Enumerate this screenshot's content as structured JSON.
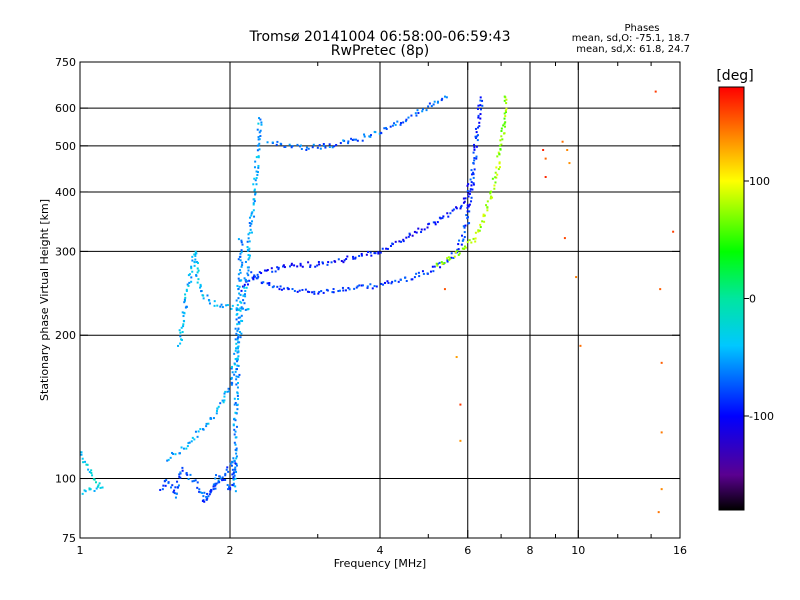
{
  "chart_data": {
    "type": "scatter",
    "title": "Tromsø 20141004 06:58:00-06:59:43",
    "subtitle": "RwPretec (8p)",
    "xlabel": "Frequency [MHz]",
    "ylabel": "Stationary phase Virtual Height [km]",
    "xscale": "log",
    "yscale": "log",
    "xlim": [
      1,
      16
    ],
    "ylim": [
      75,
      750
    ],
    "x_ticks": [
      1,
      2,
      4,
      6,
      8,
      10,
      16
    ],
    "x_tick_labels": [
      "1",
      "2",
      "4",
      "6",
      "8",
      "10",
      "16"
    ],
    "x_minor_ticks": [
      3,
      5,
      7,
      9,
      12,
      14
    ],
    "y_ticks": [
      75,
      100,
      200,
      300,
      400,
      500,
      600,
      750
    ],
    "y_tick_labels": [
      "75",
      "100",
      "200",
      "300",
      "400",
      "500",
      "600",
      "750"
    ],
    "x_gridlines": [
      2,
      4,
      6,
      8,
      10
    ],
    "y_gridlines": [
      100,
      200,
      300,
      400,
      500,
      600
    ],
    "legend": {
      "heading": "Phases",
      "line1": "mean, sd,O: -75.1, 18.7",
      "line2": "mean, sd,X:  61.8, 24.7"
    },
    "colorbar": {
      "title": "[deg]",
      "range": [
        -180,
        180
      ],
      "ticks": [
        100,
        0,
        -100
      ],
      "tick_labels": [
        "100",
        "0",
        "-100"
      ],
      "stops": [
        {
          "v": -180,
          "color": "#000000"
        },
        {
          "v": -150,
          "color": "#5a0090"
        },
        {
          "v": -100,
          "color": "#0000ff"
        },
        {
          "v": -40,
          "color": "#00c8ff"
        },
        {
          "v": 0,
          "color": "#00e6a0"
        },
        {
          "v": 40,
          "color": "#00ff00"
        },
        {
          "v": 100,
          "color": "#ffff00"
        },
        {
          "v": 140,
          "color": "#ff8000"
        },
        {
          "v": 180,
          "color": "#ff0000"
        }
      ]
    },
    "traces": [
      {
        "name": "O-mode F-layer trace",
        "phase": -85,
        "points": [
          [
            2.2,
            270
          ],
          [
            2.3,
            260
          ],
          [
            2.45,
            252
          ],
          [
            2.7,
            248
          ],
          [
            3,
            247
          ],
          [
            3.5,
            250
          ],
          [
            4,
            255
          ],
          [
            4.5,
            262
          ],
          [
            5,
            272
          ],
          [
            5.5,
            288
          ],
          [
            5.8,
            310
          ],
          [
            6.0,
            350
          ],
          [
            6.1,
            400
          ],
          [
            6.2,
            480
          ],
          [
            6.3,
            560
          ],
          [
            6.4,
            640
          ]
        ]
      },
      {
        "name": "X-mode F-layer trace",
        "phase": 75,
        "points": [
          [
            5.2,
            280
          ],
          [
            5.8,
            300
          ],
          [
            6.2,
            320
          ],
          [
            6.5,
            360
          ],
          [
            6.7,
            400
          ],
          [
            6.9,
            450
          ],
          [
            7.0,
            500
          ],
          [
            7.1,
            560
          ],
          [
            7.2,
            640
          ]
        ]
      },
      {
        "name": "Oblique band (O)",
        "phase": -95,
        "points": [
          [
            2.1,
            250
          ],
          [
            2.3,
            270
          ],
          [
            2.6,
            280
          ],
          [
            3,
            282
          ],
          [
            3.5,
            290
          ],
          [
            4,
            300
          ],
          [
            4.5,
            320
          ],
          [
            5,
            340
          ],
          [
            5.5,
            360
          ],
          [
            5.9,
            380
          ],
          [
            6.1,
            420
          ]
        ]
      },
      {
        "name": "Upper echo branch",
        "phase": -70,
        "points": [
          [
            2.4,
            510
          ],
          [
            2.6,
            498
          ],
          [
            2.8,
            495
          ],
          [
            3.2,
            500
          ],
          [
            3.6,
            515
          ],
          [
            4,
            535
          ],
          [
            4.4,
            560
          ],
          [
            4.8,
            590
          ],
          [
            5.2,
            620
          ],
          [
            5.5,
            640
          ]
        ]
      },
      {
        "name": "Low branch to cusp",
        "phase": -50,
        "points": [
          [
            1.5,
            110
          ],
          [
            1.6,
            115
          ],
          [
            1.7,
            122
          ],
          [
            1.8,
            130
          ],
          [
            1.9,
            140
          ],
          [
            2.0,
            155
          ],
          [
            2.05,
            180
          ],
          [
            2.1,
            210
          ],
          [
            2.15,
            260
          ],
          [
            2.2,
            330
          ],
          [
            2.25,
            420
          ],
          [
            2.28,
            500
          ],
          [
            2.3,
            580
          ]
        ]
      },
      {
        "name": "Cusp column near 2.1 MHz",
        "phase": -55,
        "points": [
          [
            2.05,
            95
          ],
          [
            2.05,
            130
          ],
          [
            2.07,
            160
          ],
          [
            2.07,
            200
          ],
          [
            2.08,
            240
          ],
          [
            2.1,
            280
          ],
          [
            2.1,
            320
          ]
        ]
      },
      {
        "name": "E-region echo trace",
        "phase": -45,
        "points": [
          [
            1.58,
            190
          ],
          [
            1.6,
            205
          ],
          [
            1.62,
            225
          ],
          [
            1.64,
            245
          ],
          [
            1.66,
            262
          ],
          [
            1.68,
            280
          ],
          [
            1.7,
            300
          ],
          [
            1.72,
            265
          ],
          [
            1.75,
            245
          ],
          [
            1.85,
            234
          ],
          [
            1.95,
            230
          ],
          [
            2.05,
            228
          ],
          [
            2.2,
            226
          ]
        ]
      },
      {
        "name": "Low sporadic cluster",
        "phase": -75,
        "points": [
          [
            1.45,
            95
          ],
          [
            1.5,
            100
          ],
          [
            1.55,
            92
          ],
          [
            1.6,
            105
          ],
          [
            1.7,
            98
          ],
          [
            1.8,
            90
          ],
          [
            1.9,
            102
          ],
          [
            2.0,
            95
          ],
          [
            2.05,
            110
          ],
          [
            1.75,
            88
          ]
        ]
      },
      {
        "name": "Ground echo near 1 MHz",
        "phase": -30,
        "points": [
          [
            1.0,
            93
          ],
          [
            1.03,
            94
          ],
          [
            1.06,
            95
          ],
          [
            1.1,
            95
          ],
          [
            1.0,
            112
          ],
          [
            1.02,
            113
          ]
        ]
      },
      {
        "name": "Scattered high-frequency noise",
        "phase": 150,
        "points": [
          [
            8.5,
            490
          ],
          [
            8.6,
            470
          ],
          [
            8.6,
            430
          ],
          [
            9.3,
            510
          ],
          [
            9.5,
            490
          ],
          [
            9.6,
            460
          ],
          [
            9.4,
            320
          ],
          [
            9.9,
            265
          ],
          [
            10.1,
            190
          ],
          [
            14.3,
            650
          ],
          [
            14.6,
            250
          ],
          [
            14.7,
            175
          ],
          [
            14.7,
            125
          ],
          [
            14.7,
            95
          ],
          [
            14.5,
            85
          ],
          [
            15.5,
            330
          ],
          [
            5.4,
            250
          ],
          [
            5.7,
            180
          ],
          [
            5.8,
            143
          ],
          [
            5.8,
            120
          ]
        ]
      }
    ]
  }
}
